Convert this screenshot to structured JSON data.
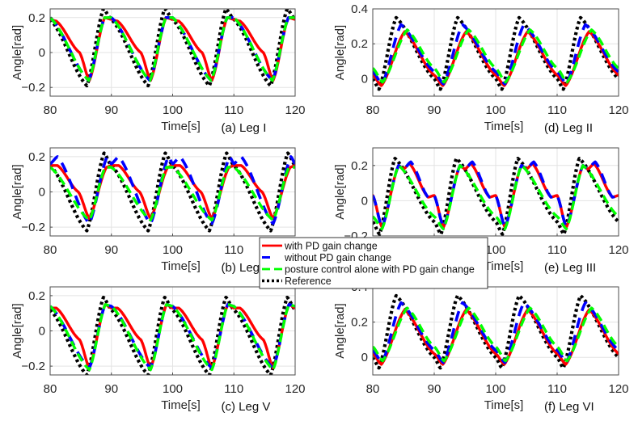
{
  "chart_data": {
    "type": "line",
    "figure_layout": "3x2 grid of subplots",
    "legend": {
      "placement": "center (overlapping middle row)",
      "entries": [
        {
          "name": "with PD gain change",
          "color": "#ff0000",
          "style": "solid"
        },
        {
          "name": "without PD gain change",
          "color": "#0000ff",
          "style": "dashed"
        },
        {
          "name": "posture control alone with PD gain change",
          "color": "#00ff00",
          "style": "dashed"
        },
        {
          "name": "Reference",
          "color": "#000000",
          "style": "dotted"
        }
      ]
    },
    "period_s": 10,
    "subplots": [
      {
        "id": "a",
        "caption": "(a) Leg I",
        "xlabel": "Time[s]",
        "ylabel": "Angle[rad]",
        "xlim": [
          80,
          120
        ],
        "ylim": [
          -0.25,
          0.25
        ],
        "xticks": [
          80,
          90,
          100,
          110,
          120
        ],
        "xtick_labels": [
          "80",
          "90",
          "100",
          "110",
          "120"
        ],
        "yticks": [
          -0.2,
          0,
          0.2
        ],
        "ytick_labels": [
          "-0.2",
          "0",
          "0.2"
        ],
        "grid": true,
        "series": [
          {
            "name": "Reference",
            "keypoints": [
              [
                0,
                0.19
              ],
              [
                6.0,
                -0.19
              ],
              [
                8.7,
                0.25
              ],
              [
                10,
                0.19
              ]
            ]
          },
          {
            "name": "posture control alone with PD gain change",
            "keypoints": [
              [
                0,
                0.2
              ],
              [
                6.3,
                -0.16
              ],
              [
                8.9,
                0.2
              ],
              [
                10,
                0.2
              ]
            ]
          },
          {
            "name": "without PD gain change",
            "keypoints": [
              [
                0,
                0.2
              ],
              [
                6.3,
                -0.16
              ],
              [
                8.9,
                0.2
              ],
              [
                10,
                0.2
              ]
            ]
          },
          {
            "name": "with PD gain change",
            "keypoints": [
              [
                0,
                0.19
              ],
              [
                1.0,
                0.18
              ],
              [
                4.8,
                0.0
              ],
              [
                6.4,
                -0.16
              ],
              [
                8.9,
                0.2
              ],
              [
                10,
                0.19
              ]
            ]
          }
        ]
      },
      {
        "id": "b",
        "caption": "(b) Leg IV",
        "xlabel": "Time[s]",
        "ylabel": "Angle[rad]",
        "xlim": [
          80,
          120
        ],
        "ylim": [
          -0.25,
          0.25
        ],
        "xticks": [
          80,
          90,
          100,
          110,
          120
        ],
        "xtick_labels": [
          "80",
          "90",
          "100",
          "110",
          "120"
        ],
        "yticks": [
          -0.2,
          0,
          0.2
        ],
        "ytick_labels": [
          "-0.2",
          "0",
          "0.2"
        ],
        "grid": true,
        "series": [
          {
            "name": "Reference",
            "keypoints": [
              [
                0,
                0.15
              ],
              [
                6.0,
                -0.22
              ],
              [
                8.8,
                0.22
              ],
              [
                10,
                0.15
              ]
            ]
          },
          {
            "name": "posture control alone with PD gain change",
            "keypoints": [
              [
                0,
                0.14
              ],
              [
                6.4,
                -0.16
              ],
              [
                9.0,
                0.14
              ],
              [
                10,
                0.14
              ]
            ]
          },
          {
            "name": "without PD gain change",
            "keypoints": [
              [
                0,
                0.16
              ],
              [
                1.2,
                0.2
              ],
              [
                6.4,
                -0.18
              ],
              [
                9.3,
                0.2
              ],
              [
                10,
                0.16
              ]
            ]
          },
          {
            "name": "with PD gain change",
            "keypoints": [
              [
                0,
                0.15
              ],
              [
                1.2,
                0.15
              ],
              [
                4.6,
                0.0
              ],
              [
                6.4,
                -0.15
              ],
              [
                9.2,
                0.14
              ],
              [
                10,
                0.15
              ]
            ]
          }
        ]
      },
      {
        "id": "c",
        "caption": "(c) Leg V",
        "xlabel": "Time[s]",
        "ylabel": "Angle[rad]",
        "xlim": [
          80,
          120
        ],
        "ylim": [
          -0.25,
          0.25
        ],
        "xticks": [
          80,
          90,
          100,
          110,
          120
        ],
        "xtick_labels": [
          "80",
          "90",
          "100",
          "110",
          "120"
        ],
        "yticks": [
          -0.2,
          0,
          0.2
        ],
        "ytick_labels": [
          "-0.2",
          "0",
          "0.2"
        ],
        "grid": true,
        "series": [
          {
            "name": "Reference",
            "keypoints": [
              [
                0,
                0.12
              ],
              [
                6.0,
                -0.25
              ],
              [
                8.7,
                0.19
              ],
              [
                10,
                0.12
              ]
            ]
          },
          {
            "name": "posture control alone with PD gain change",
            "keypoints": [
              [
                0,
                0.14
              ],
              [
                6.4,
                -0.22
              ],
              [
                9.0,
                0.15
              ],
              [
                10,
                0.14
              ]
            ]
          },
          {
            "name": "without PD gain change",
            "keypoints": [
              [
                0,
                0.14
              ],
              [
                6.4,
                -0.21
              ],
              [
                9.0,
                0.15
              ],
              [
                10,
                0.14
              ]
            ]
          },
          {
            "name": "with PD gain change",
            "keypoints": [
              [
                0,
                0.13
              ],
              [
                1.0,
                0.13
              ],
              [
                4.8,
                -0.05
              ],
              [
                6.4,
                -0.21
              ],
              [
                9.0,
                0.15
              ],
              [
                10,
                0.13
              ]
            ]
          }
        ]
      },
      {
        "id": "d",
        "caption": "(d) Leg II",
        "xlabel": "Time[s]",
        "ylabel": "Angle[rad]",
        "xlim": [
          80,
          120
        ],
        "ylim": [
          -0.1,
          0.4
        ],
        "xticks": [
          80,
          90,
          100,
          110,
          120
        ],
        "xtick_labels": [
          "80",
          "90",
          "100",
          "110",
          "120"
        ],
        "yticks": [
          0,
          0.2,
          0.4
        ],
        "ytick_labels": [
          "0",
          "0.2",
          "0.4"
        ],
        "grid": true,
        "series": [
          {
            "name": "Reference",
            "keypoints": [
              [
                0,
                0.0
              ],
              [
                1.0,
                -0.06
              ],
              [
                3.8,
                0.35
              ],
              [
                10,
                0.0
              ]
            ]
          },
          {
            "name": "posture control alone with PD gain change",
            "keypoints": [
              [
                0,
                0.06
              ],
              [
                1.6,
                -0.02
              ],
              [
                5.6,
                0.28
              ],
              [
                10,
                0.06
              ]
            ]
          },
          {
            "name": "without PD gain change",
            "keypoints": [
              [
                0,
                0.04
              ],
              [
                1.5,
                -0.03
              ],
              [
                4.6,
                0.31
              ],
              [
                10,
                0.04
              ]
            ]
          },
          {
            "name": "with PD gain change",
            "keypoints": [
              [
                0,
                0.02
              ],
              [
                1.4,
                -0.04
              ],
              [
                5.2,
                0.27
              ],
              [
                10,
                0.02
              ]
            ]
          }
        ]
      },
      {
        "id": "e",
        "caption": "(e) Leg III",
        "xlabel": "Time[s]",
        "ylabel": "Angle[rad]",
        "xlim": [
          80,
          120
        ],
        "ylim": [
          -0.2,
          0.3
        ],
        "xticks": [
          80,
          90,
          100,
          110,
          120
        ],
        "xtick_labels": [
          "80",
          "90",
          "100",
          "110",
          "120"
        ],
        "yticks": [
          -0.2,
          0,
          0.2
        ],
        "ytick_labels": [
          "-0.2",
          "0",
          "0.2"
        ],
        "grid": true,
        "series": [
          {
            "name": "Reference",
            "keypoints": [
              [
                0,
                -0.12
              ],
              [
                1.1,
                -0.19
              ],
              [
                3.6,
                0.24
              ],
              [
                10,
                -0.12
              ]
            ]
          },
          {
            "name": "posture control alone with PD gain change",
            "keypoints": [
              [
                0,
                -0.09
              ],
              [
                1.5,
                -0.16
              ],
              [
                4.2,
                0.2
              ],
              [
                10,
                -0.09
              ]
            ]
          },
          {
            "name": "without PD gain change",
            "keypoints": [
              [
                0,
                0.03
              ],
              [
                1.5,
                -0.15
              ],
              [
                4.2,
                0.2
              ],
              [
                5.0,
                0.18
              ],
              [
                6.2,
                0.22
              ],
              [
                9.0,
                0.02
              ],
              [
                10,
                0.03
              ]
            ]
          },
          {
            "name": "with PD gain change",
            "keypoints": [
              [
                0,
                0.03
              ],
              [
                1.5,
                -0.15
              ],
              [
                4.2,
                0.2
              ],
              [
                5.0,
                0.18
              ],
              [
                6.0,
                0.21
              ],
              [
                9.0,
                0.02
              ],
              [
                10,
                0.03
              ]
            ]
          }
        ]
      },
      {
        "id": "f",
        "caption": "(f) Leg VI",
        "xlabel": "Time[s]",
        "ylabel": "Angle[rad]",
        "xlim": [
          80,
          120
        ],
        "ylim": [
          -0.1,
          0.4
        ],
        "xticks": [
          80,
          90,
          100,
          110,
          120
        ],
        "xtick_labels": [
          "80",
          "90",
          "100",
          "110",
          "120"
        ],
        "yticks": [
          0,
          0.2,
          0.4
        ],
        "ytick_labels": [
          "0",
          "0.2",
          "0.4"
        ],
        "grid": true,
        "series": [
          {
            "name": "Reference",
            "keypoints": [
              [
                0,
                0.0
              ],
              [
                1.0,
                -0.06
              ],
              [
                3.8,
                0.35
              ],
              [
                10,
                0.0
              ]
            ]
          },
          {
            "name": "posture control alone with PD gain change",
            "keypoints": [
              [
                0,
                0.06
              ],
              [
                1.6,
                -0.02
              ],
              [
                5.6,
                0.28
              ],
              [
                10,
                0.06
              ]
            ]
          },
          {
            "name": "without PD gain change",
            "keypoints": [
              [
                0,
                0.04
              ],
              [
                1.5,
                -0.03
              ],
              [
                4.6,
                0.31
              ],
              [
                10,
                0.04
              ]
            ]
          },
          {
            "name": "with PD gain change",
            "keypoints": [
              [
                0,
                0.02
              ],
              [
                1.4,
                -0.04
              ],
              [
                5.2,
                0.27
              ],
              [
                10,
                0.02
              ]
            ]
          }
        ]
      }
    ]
  }
}
